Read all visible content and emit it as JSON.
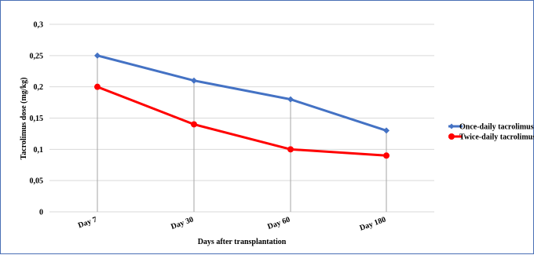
{
  "chart_data": {
    "type": "line",
    "categories": [
      "Day 7",
      "Day 30",
      "Day 60",
      "Day 180"
    ],
    "xlabel": "Days after transplantation",
    "ylabel": "Tacrolimus dose (mg/kg)",
    "ylim": [
      0,
      0.3
    ],
    "yticks": [
      "0",
      "0,05",
      "0,1",
      "0,15",
      "0,2",
      "0,25",
      "0,3"
    ],
    "grid": true,
    "legend_position": "right",
    "series": [
      {
        "name": "Once-daily tacrolimus",
        "values": [
          0.25,
          0.21,
          0.18,
          0.13
        ],
        "color": "#4472c4",
        "marker": "diamond"
      },
      {
        "name": "Twice-daily tacrolimus",
        "values": [
          0.2,
          0.14,
          0.1,
          0.09
        ],
        "color": "#ff0000",
        "marker": "circle"
      }
    ]
  }
}
